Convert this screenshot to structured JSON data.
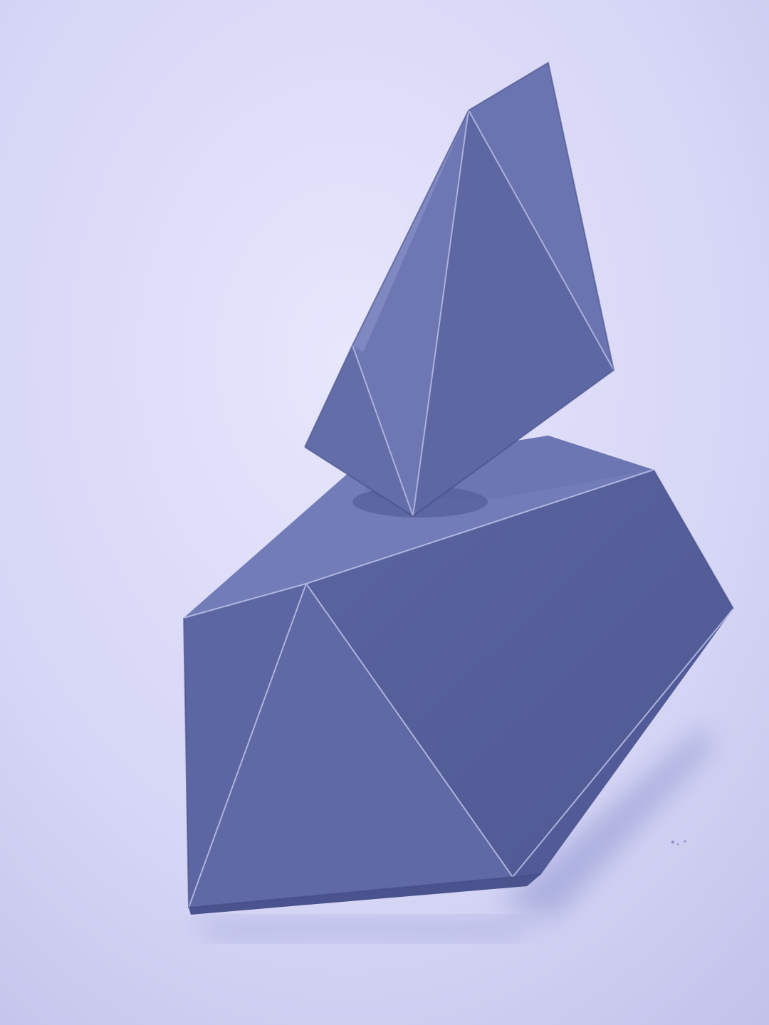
{
  "photo": {
    "subject": "folded-paper-polyhedra",
    "colors": {
      "backdrop_light": "#e4e4fb",
      "backdrop_dark": "#c4c4ec",
      "paper_base": "#5f6aa6",
      "paper_light": "#7a84bf",
      "paper_mid": "#6670ad",
      "paper_dark": "#4c558f",
      "paper_darkest": "#3f4780",
      "shadow": "#9b9fd6",
      "crease": "#c5cbf0"
    }
  }
}
